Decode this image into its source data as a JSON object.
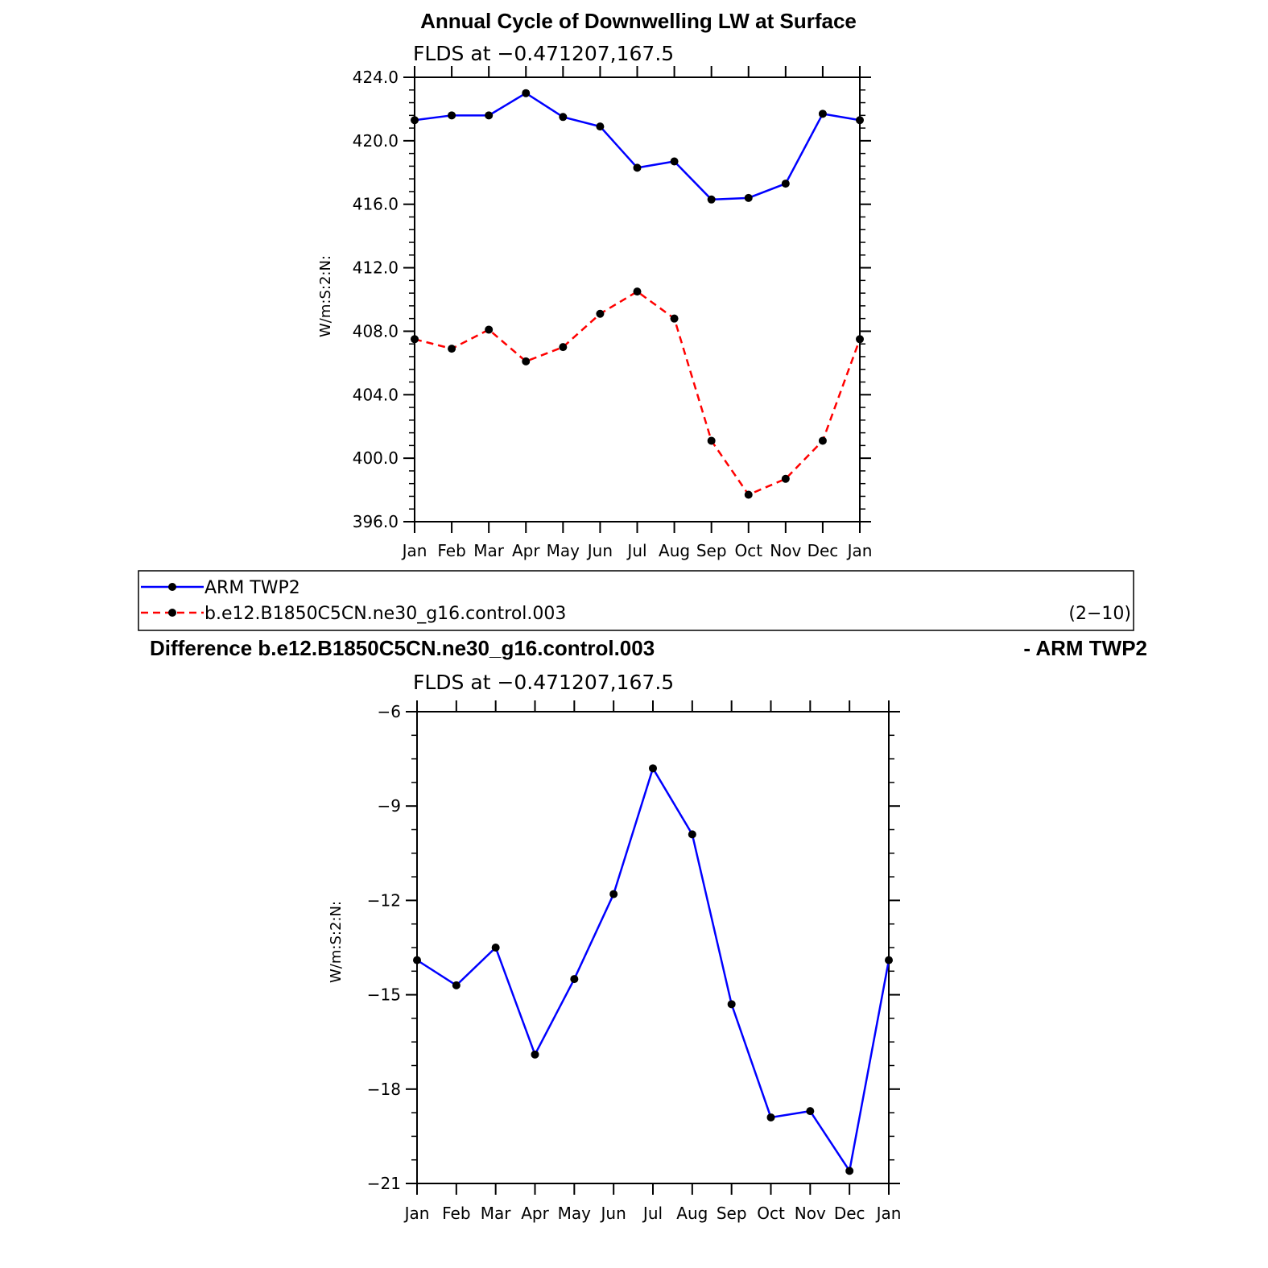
{
  "chart_data": [
    {
      "type": "line",
      "title": "Annual Cycle of Downwelling LW at Surface",
      "subtitle": "FLDS at −0.471207,167.5",
      "ylabel": "W/m:S:2:N:",
      "categories": [
        "Jan",
        "Feb",
        "Mar",
        "Apr",
        "May",
        "Jun",
        "Jul",
        "Aug",
        "Sep",
        "Oct",
        "Nov",
        "Dec",
        "Jan"
      ],
      "ylim": [
        396,
        424
      ],
      "yticks": [
        "396.0",
        "400.0",
        "404.0",
        "408.0",
        "412.0",
        "416.0",
        "420.0",
        "424.0"
      ],
      "series": [
        {
          "name": "ARM TWP2",
          "color": "#0000ff",
          "dash": "solid",
          "values": [
            421.3,
            421.6,
            421.6,
            423.0,
            421.5,
            420.9,
            418.3,
            418.7,
            416.3,
            416.4,
            417.3,
            421.7,
            421.3
          ]
        },
        {
          "name": "b.e12.B1850C5CN.ne30_g16.control.003",
          "color": "#ff0000",
          "dash": "dashed",
          "values": [
            407.5,
            406.9,
            408.1,
            406.1,
            407.0,
            409.1,
            410.5,
            408.8,
            401.1,
            397.7,
            398.7,
            401.1,
            407.5
          ]
        }
      ]
    },
    {
      "type": "line",
      "title": "Difference b.e12.B1850C5CN.ne30_g16.control.003",
      "title_right": "- ARM TWP2",
      "subtitle": "FLDS at −0.471207,167.5",
      "ylabel": "W/m:S:2:N:",
      "categories": [
        "Jan",
        "Feb",
        "Mar",
        "Apr",
        "May",
        "Jun",
        "Jul",
        "Aug",
        "Sep",
        "Oct",
        "Nov",
        "Dec",
        "Jan"
      ],
      "ylim": [
        -21,
        -6
      ],
      "yticks": [
        "−21",
        "−18",
        "−15",
        "−12",
        "−9",
        "−6"
      ],
      "series": [
        {
          "color": "#0000ff",
          "dash": "solid",
          "values": [
            -13.9,
            -14.7,
            -13.5,
            -16.9,
            -14.5,
            -11.8,
            -7.8,
            -9.9,
            -15.3,
            -18.9,
            -18.7,
            -20.6,
            -13.9
          ]
        }
      ]
    }
  ],
  "legend": {
    "items": [
      {
        "label": "ARM TWP2",
        "color": "#0000ff",
        "dash": "solid"
      },
      {
        "label": "b.e12.B1850C5CN.ne30_g16.control.003",
        "color": "#ff0000",
        "dash": "dashed"
      }
    ],
    "note": "(2−10)"
  }
}
